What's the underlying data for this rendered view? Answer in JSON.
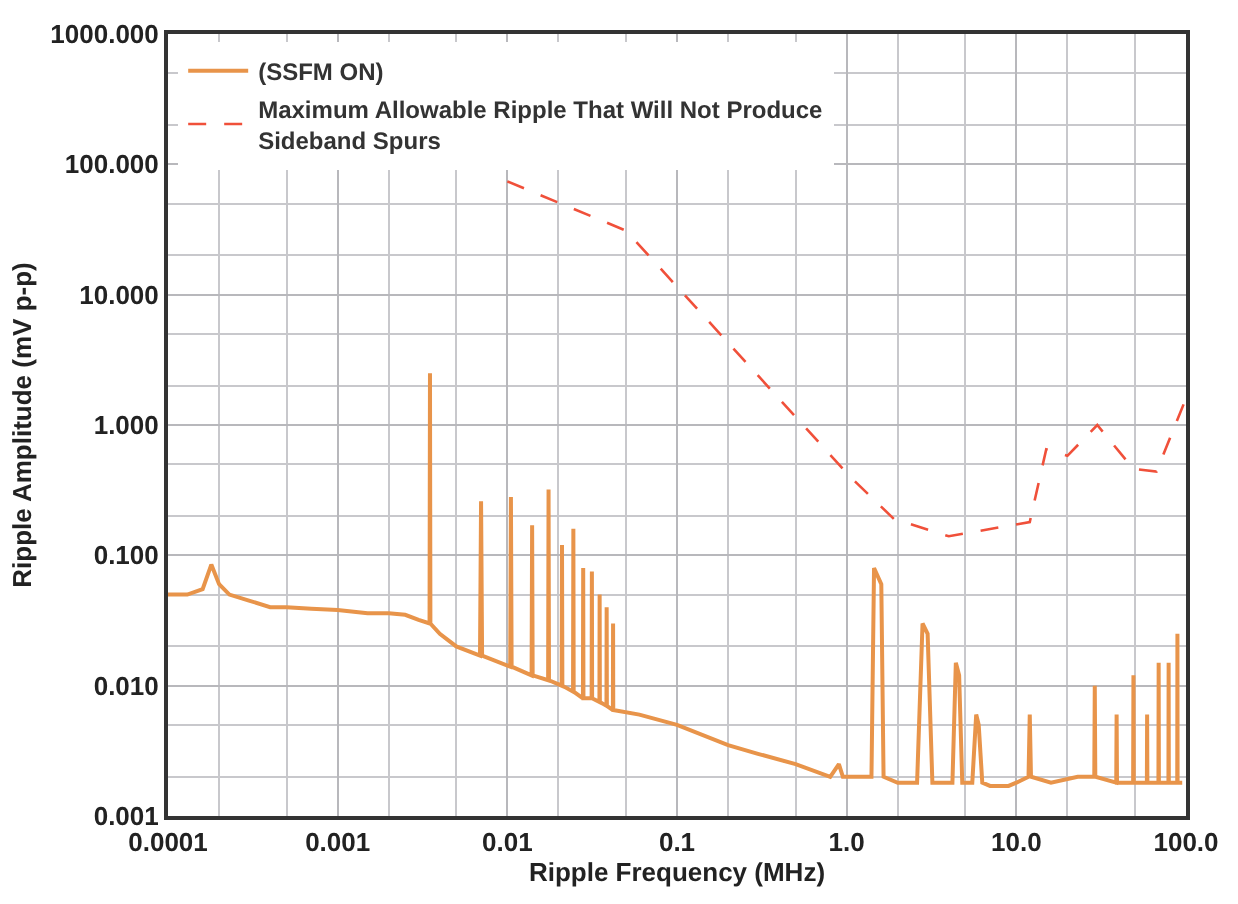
{
  "chart_data": {
    "type": "line",
    "xlabel": "Ripple Frequency (MHz)",
    "ylabel": "Ripple Amplitude (mV p-p)",
    "log": "xy",
    "grid": true,
    "legend": "top left",
    "marker": "none",
    "xlim": [
      0.0001,
      100
    ],
    "ylim": [
      0.001,
      1000
    ],
    "xticks": [
      {
        "value": 0.0001,
        "label": "0.0001"
      },
      {
        "value": 0.001,
        "label": "0.001"
      },
      {
        "value": 0.01,
        "label": "0.01"
      },
      {
        "value": 0.1,
        "label": "0.1"
      },
      {
        "value": 1,
        "label": "1.0"
      },
      {
        "value": 10,
        "label": "10.0"
      },
      {
        "value": 100,
        "label": "100.0"
      }
    ],
    "yticks": [
      {
        "value": 0.001,
        "label": "0.001"
      },
      {
        "value": 0.01,
        "label": "0.010"
      },
      {
        "value": 0.1,
        "label": "0.100"
      },
      {
        "value": 1,
        "label": "1.000"
      },
      {
        "value": 10,
        "label": "10.000"
      },
      {
        "value": 100,
        "label": "100.000"
      },
      {
        "value": 1000,
        "label": "1000.000"
      }
    ],
    "series": [
      {
        "name": "(SSFM ON)",
        "color": "#e8944a",
        "line_style": "solid",
        "x": [
          0.0001,
          0.00013,
          0.00016,
          0.00018,
          0.0002,
          0.00023,
          0.0003,
          0.0004,
          0.0005,
          0.0007,
          0.001,
          0.0015,
          0.002,
          0.0025,
          0.003,
          0.00348,
          0.0035,
          0.00352,
          0.004,
          0.005,
          0.0069,
          0.007,
          0.0071,
          0.0104,
          0.0105,
          0.0106,
          0.0139,
          0.014,
          0.0141,
          0.0174,
          0.0175,
          0.0176,
          0.0209,
          0.021,
          0.0211,
          0.0244,
          0.0245,
          0.0246,
          0.0279,
          0.028,
          0.0281,
          0.0314,
          0.0315,
          0.0316,
          0.0349,
          0.035,
          0.0351,
          0.0384,
          0.0385,
          0.0386,
          0.0419,
          0.042,
          0.0421,
          0.06,
          0.1,
          0.2,
          0.3,
          0.5,
          0.8,
          0.9,
          0.95,
          1.2,
          1.4,
          1.45,
          1.6,
          1.65,
          2.0,
          2.6,
          2.8,
          3.0,
          3.2,
          3.6,
          4.2,
          4.4,
          4.6,
          4.8,
          5.5,
          5.8,
          6.0,
          6.3,
          7,
          9,
          10,
          11.8,
          12,
          12.2,
          16,
          23,
          26,
          28.8,
          29,
          29.2,
          38.8,
          39,
          39.2,
          48.8,
          49,
          49.2,
          58.8,
          59,
          59.2,
          68.8,
          69,
          69.2,
          78.8,
          79,
          79.2,
          88.8,
          89,
          89.2,
          95
        ],
        "values": [
          0.05,
          0.05,
          0.055,
          0.085,
          0.06,
          0.05,
          0.045,
          0.04,
          0.04,
          0.039,
          0.038,
          0.036,
          0.036,
          0.035,
          0.032,
          0.03,
          2.5,
          0.03,
          0.025,
          0.02,
          0.017,
          0.26,
          0.017,
          0.014,
          0.28,
          0.014,
          0.012,
          0.17,
          0.012,
          0.011,
          0.32,
          0.011,
          0.01,
          0.12,
          0.01,
          0.009,
          0.16,
          0.009,
          0.008,
          0.08,
          0.008,
          0.008,
          0.075,
          0.008,
          0.0075,
          0.05,
          0.0075,
          0.007,
          0.04,
          0.007,
          0.0065,
          0.03,
          0.0065,
          0.006,
          0.005,
          0.0035,
          0.003,
          0.0025,
          0.002,
          0.0025,
          0.002,
          0.002,
          0.002,
          0.08,
          0.06,
          0.002,
          0.0018,
          0.0018,
          0.03,
          0.025,
          0.0018,
          0.0018,
          0.0018,
          0.015,
          0.012,
          0.0018,
          0.0018,
          0.006,
          0.005,
          0.0018,
          0.0017,
          0.0017,
          0.0018,
          0.002,
          0.006,
          0.002,
          0.0018,
          0.002,
          0.002,
          0.002,
          0.01,
          0.002,
          0.0018,
          0.006,
          0.0018,
          0.0018,
          0.012,
          0.0018,
          0.0018,
          0.006,
          0.0018,
          0.0018,
          0.015,
          0.0018,
          0.0018,
          0.015,
          0.0018,
          0.0018,
          0.025,
          0.0018,
          0.0018
        ]
      },
      {
        "name": "Maximum Allowable Ripple That Will Not Produce Sideband Spurs",
        "color": "#f0503a",
        "line_style": "dashed",
        "x": [
          0.01,
          0.05,
          0.068,
          1.05,
          1.9,
          4.0,
          12,
          15,
          20,
          30,
          49,
          67,
          98
        ],
        "values": [
          74,
          31,
          20,
          0.4,
          0.19,
          0.14,
          0.18,
          0.65,
          0.58,
          1.0,
          0.46,
          0.44,
          1.5
        ]
      }
    ]
  }
}
